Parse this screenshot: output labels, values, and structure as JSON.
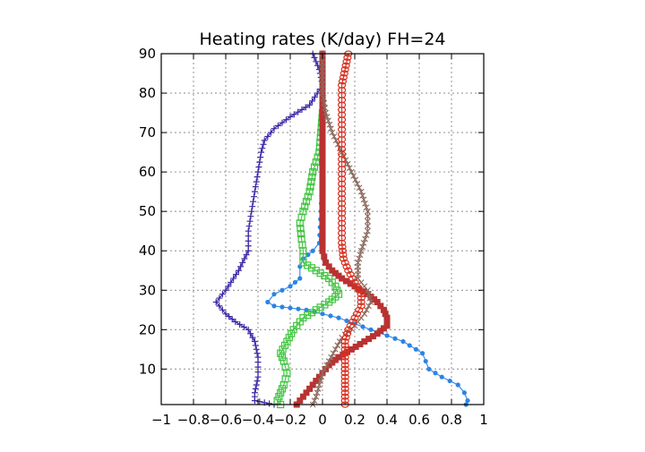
{
  "chart_data": {
    "type": "line",
    "title": "Heating rates (K/day) FH=24",
    "xlabel": "",
    "ylabel": "",
    "xlim": [
      -1,
      1
    ],
    "ylim": [
      1,
      90
    ],
    "xticks": [
      -1,
      -0.8,
      -0.6,
      -0.4,
      -0.2,
      0,
      0.2,
      0.4,
      0.6,
      0.8,
      1
    ],
    "xtick_labels": [
      "−1",
      "−0.8",
      "−0.6",
      "−0.4",
      "−0.2",
      "0",
      "0.2",
      "0.4",
      "0.6",
      "0.8",
      "1"
    ],
    "yticks": [
      10,
      20,
      30,
      40,
      50,
      60,
      70,
      80,
      90
    ],
    "ytick_labels": [
      "10",
      "20",
      "30",
      "40",
      "50",
      "60",
      "70",
      "80",
      "90"
    ],
    "grid": true,
    "legend": "none",
    "series": [
      {
        "color": "#3b2aa6",
        "marker": "plus",
        "points": [
          [
            -0.06,
            90
          ],
          [
            -0.02,
            86
          ],
          [
            0.0,
            82
          ],
          [
            -0.08,
            77
          ],
          [
            -0.2,
            74
          ],
          [
            -0.3,
            71
          ],
          [
            -0.36,
            68
          ],
          [
            -0.38,
            65
          ],
          [
            -0.4,
            60
          ],
          [
            -0.42,
            55
          ],
          [
            -0.44,
            50
          ],
          [
            -0.46,
            45
          ],
          [
            -0.46,
            40
          ],
          [
            -0.52,
            35
          ],
          [
            -0.6,
            30
          ],
          [
            -0.66,
            27
          ],
          [
            -0.6,
            24
          ],
          [
            -0.54,
            22
          ],
          [
            -0.46,
            20
          ],
          [
            -0.42,
            17
          ],
          [
            -0.4,
            13
          ],
          [
            -0.4,
            8
          ],
          [
            -0.42,
            4
          ],
          [
            -0.42,
            2
          ],
          [
            -0.3,
            1
          ]
        ]
      },
      {
        "color": "#2b84e6",
        "marker": "dot",
        "points": [
          [
            0.0,
            90
          ],
          [
            0.0,
            80
          ],
          [
            0.0,
            70
          ],
          [
            0.0,
            60
          ],
          [
            -0.01,
            50
          ],
          [
            -0.02,
            42
          ],
          [
            -0.06,
            40
          ],
          [
            -0.12,
            38
          ],
          [
            -0.14,
            36
          ],
          [
            -0.14,
            33
          ],
          [
            -0.2,
            31
          ],
          [
            -0.3,
            29
          ],
          [
            -0.34,
            27
          ],
          [
            -0.3,
            26
          ],
          [
            -0.1,
            25
          ],
          [
            0.1,
            23
          ],
          [
            0.3,
            20
          ],
          [
            0.5,
            17
          ],
          [
            0.62,
            14
          ],
          [
            0.64,
            12
          ],
          [
            0.66,
            10
          ],
          [
            0.74,
            8
          ],
          [
            0.84,
            6
          ],
          [
            0.88,
            4
          ],
          [
            0.9,
            2
          ],
          [
            0.89,
            1
          ]
        ]
      },
      {
        "color": "#3ec43e",
        "marker": "square",
        "points": [
          [
            0.0,
            75
          ],
          [
            -0.02,
            65
          ],
          [
            -0.06,
            60
          ],
          [
            -0.08,
            55
          ],
          [
            -0.12,
            50
          ],
          [
            -0.14,
            47
          ],
          [
            -0.13,
            43
          ],
          [
            -0.12,
            40
          ],
          [
            -0.12,
            37
          ],
          [
            -0.04,
            35
          ],
          [
            0.04,
            33
          ],
          [
            0.08,
            31
          ],
          [
            0.1,
            29
          ],
          [
            0.04,
            27
          ],
          [
            -0.04,
            25
          ],
          [
            -0.12,
            23
          ],
          [
            -0.18,
            20
          ],
          [
            -0.22,
            17
          ],
          [
            -0.26,
            14
          ],
          [
            -0.24,
            12
          ],
          [
            -0.22,
            9
          ],
          [
            -0.24,
            6
          ],
          [
            -0.26,
            4
          ],
          [
            -0.28,
            2
          ],
          [
            -0.26,
            1
          ]
        ]
      },
      {
        "color": "#b83232",
        "marker": "filled-square",
        "points": [
          [
            0.0,
            90
          ],
          [
            0.0,
            70
          ],
          [
            0.0,
            50
          ],
          [
            0.0,
            40
          ],
          [
            0.02,
            37
          ],
          [
            0.06,
            35
          ],
          [
            0.12,
            33
          ],
          [
            0.2,
            31
          ],
          [
            0.28,
            29
          ],
          [
            0.34,
            27
          ],
          [
            0.38,
            25
          ],
          [
            0.4,
            23
          ],
          [
            0.4,
            21
          ],
          [
            0.34,
            19
          ],
          [
            0.26,
            17
          ],
          [
            0.18,
            15
          ],
          [
            0.1,
            13
          ],
          [
            0.04,
            11
          ],
          [
            0.0,
            9
          ],
          [
            -0.04,
            7
          ],
          [
            -0.08,
            5
          ],
          [
            -0.12,
            3
          ],
          [
            -0.14,
            2
          ],
          [
            -0.16,
            1
          ]
        ]
      },
      {
        "color": "#8b6a5e",
        "marker": "x",
        "points": [
          [
            0.0,
            90
          ],
          [
            0.0,
            80
          ],
          [
            0.02,
            75
          ],
          [
            0.06,
            70
          ],
          [
            0.12,
            65
          ],
          [
            0.18,
            60
          ],
          [
            0.24,
            55
          ],
          [
            0.28,
            50
          ],
          [
            0.28,
            45
          ],
          [
            0.24,
            40
          ],
          [
            0.22,
            37
          ],
          [
            0.22,
            33
          ],
          [
            0.28,
            30
          ],
          [
            0.3,
            27
          ],
          [
            0.26,
            24
          ],
          [
            0.2,
            21
          ],
          [
            0.12,
            18
          ],
          [
            0.08,
            15
          ],
          [
            0.04,
            12
          ],
          [
            0.0,
            9
          ],
          [
            -0.02,
            6
          ],
          [
            -0.04,
            3
          ],
          [
            -0.06,
            1
          ]
        ]
      },
      {
        "color": "#d93020",
        "marker": "circle",
        "points": [
          [
            0.16,
            90
          ],
          [
            0.14,
            86
          ],
          [
            0.12,
            82
          ],
          [
            0.12,
            77
          ],
          [
            0.12,
            72
          ],
          [
            0.12,
            67
          ],
          [
            0.12,
            62
          ],
          [
            0.12,
            57
          ],
          [
            0.12,
            52
          ],
          [
            0.12,
            47
          ],
          [
            0.12,
            42
          ],
          [
            0.13,
            38
          ],
          [
            0.16,
            35
          ],
          [
            0.2,
            32
          ],
          [
            0.24,
            29
          ],
          [
            0.24,
            26
          ],
          [
            0.2,
            23
          ],
          [
            0.16,
            20
          ],
          [
            0.14,
            17
          ],
          [
            0.14,
            13
          ],
          [
            0.14,
            9
          ],
          [
            0.14,
            5
          ],
          [
            0.14,
            1
          ]
        ]
      }
    ]
  }
}
